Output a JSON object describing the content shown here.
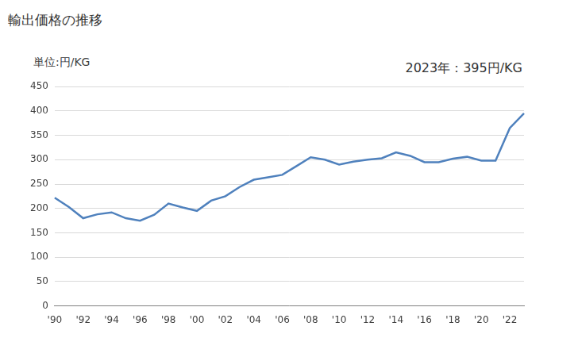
{
  "chart_data": {
    "type": "line",
    "title": "輸出価格の推移",
    "ylabel": "単位:円/KG",
    "annotations": [
      "2023年：395円/KG"
    ],
    "categories": [
      "'90",
      null,
      "'92",
      null,
      "'94",
      null,
      "'96",
      null,
      "'98",
      null,
      "'00",
      null,
      "'02",
      null,
      "'04",
      null,
      "'06",
      null,
      "'08",
      null,
      "'10",
      null,
      "'12",
      null,
      "'14",
      null,
      "'16",
      null,
      "'18",
      null,
      "'20",
      null,
      "'22",
      null
    ],
    "values": [
      222,
      203,
      180,
      188,
      192,
      180,
      175,
      187,
      210,
      202,
      195,
      216,
      225,
      244,
      259,
      264,
      269,
      287,
      305,
      300,
      290,
      296,
      300,
      303,
      315,
      308,
      295,
      295,
      302,
      306,
      298,
      298,
      365,
      395
    ],
    "color": "#4f81bd",
    "ylim": [
      0,
      450
    ],
    "yticks": [
      0,
      50,
      100,
      150,
      200,
      250,
      300,
      350,
      400,
      450
    ],
    "grid": true
  }
}
